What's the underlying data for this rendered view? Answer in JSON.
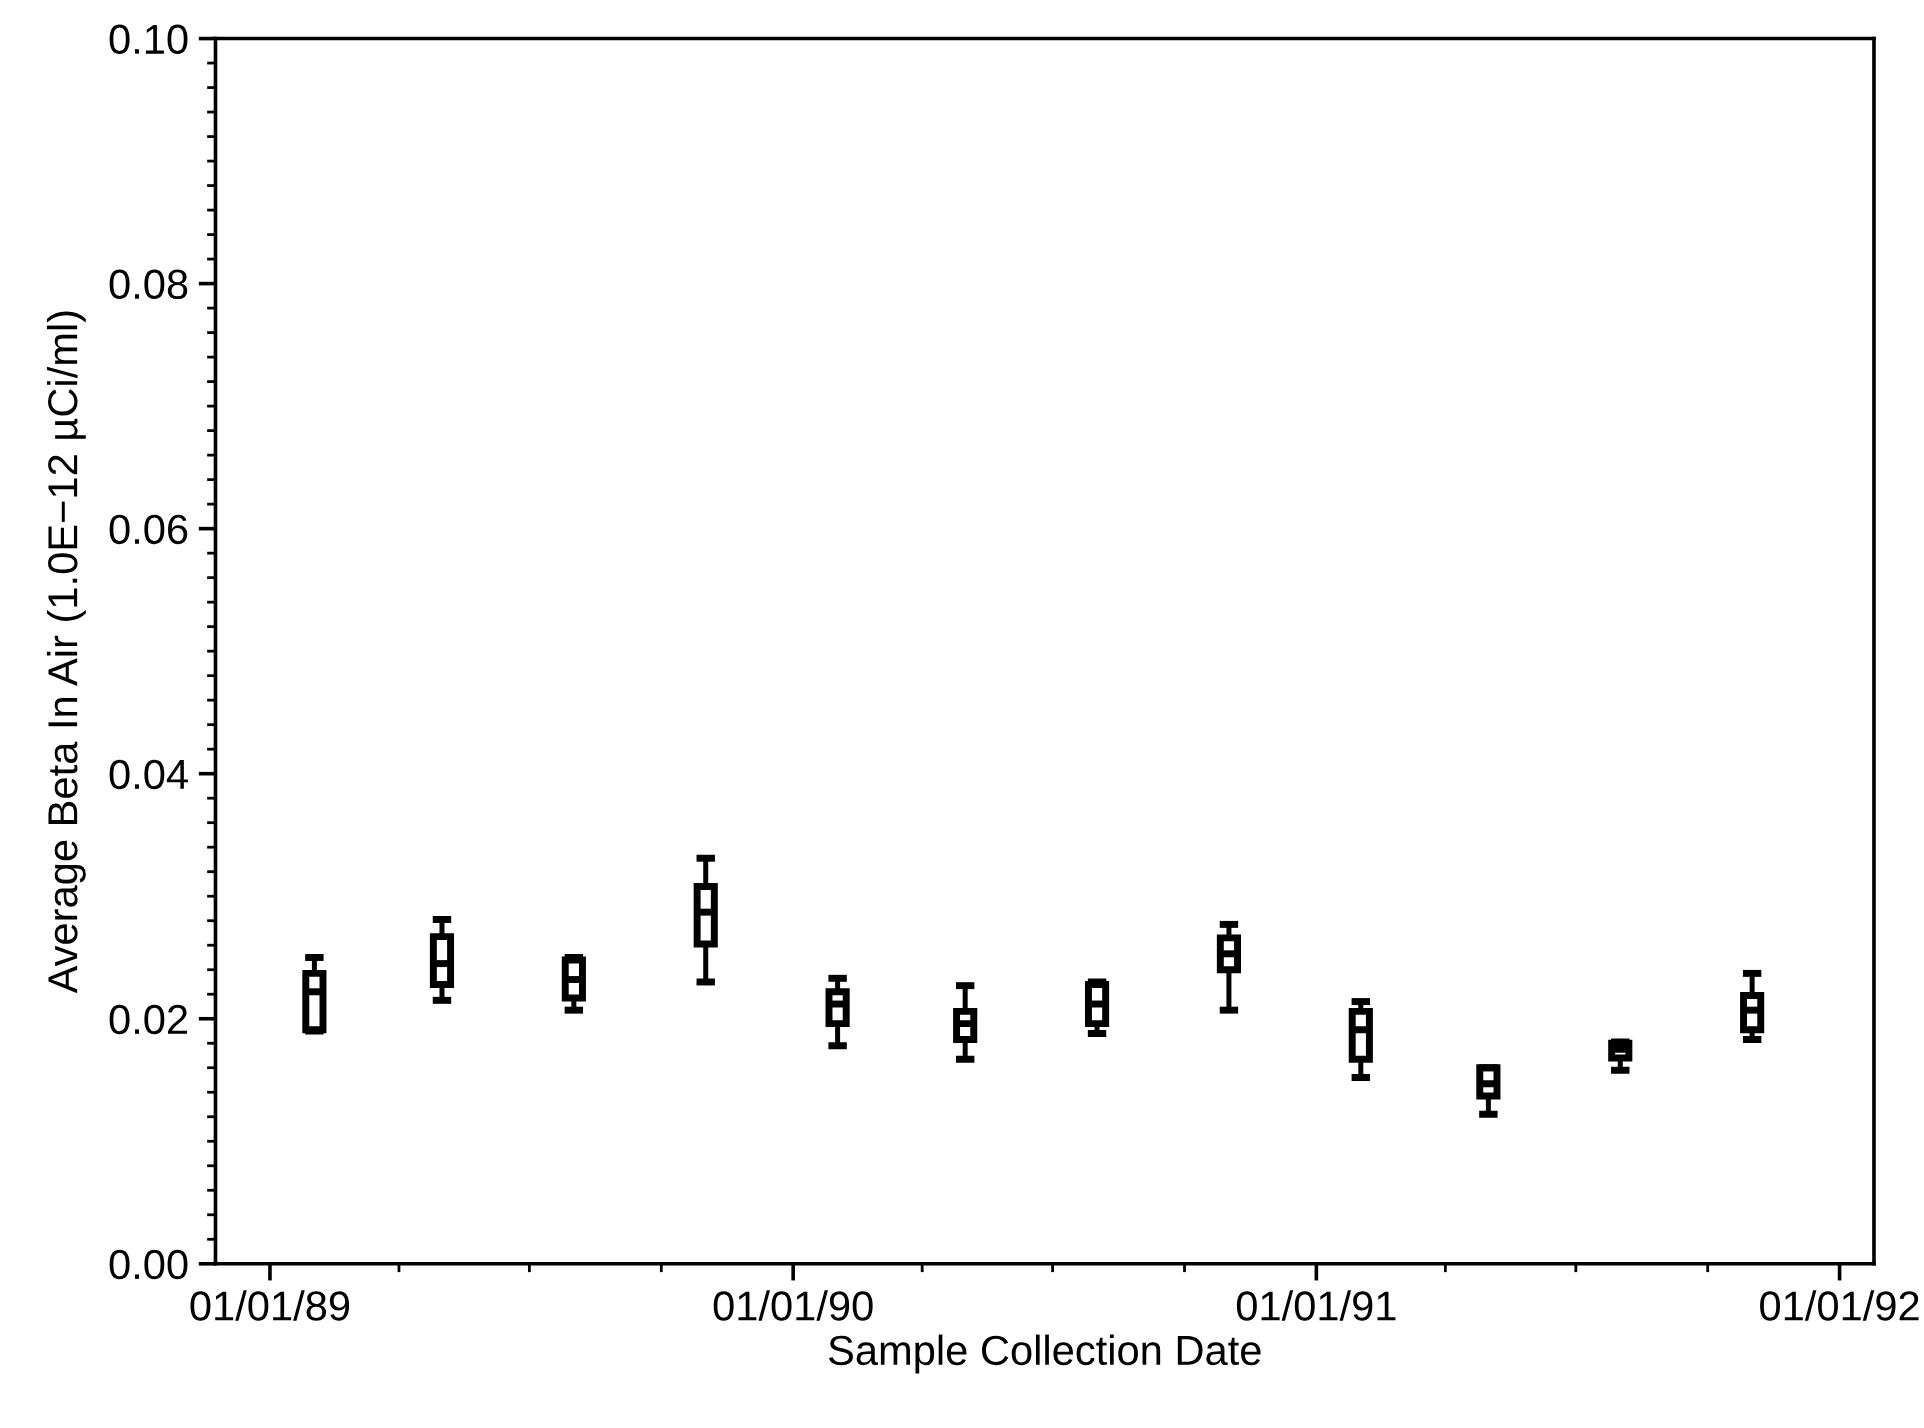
{
  "chart_data": {
    "type": "box",
    "xlabel": "Sample Collection Date",
    "ylabel": "Average Beta In Air (1.0E−12 µCi/ml)",
    "x": [
      "1989-02-01",
      "1989-05-01",
      "1989-08-01",
      "1989-11-01",
      "1990-02-01",
      "1990-05-01",
      "1990-08-01",
      "1990-11-01",
      "1991-02-01",
      "1991-05-01",
      "1991-08-01",
      "1991-11-01"
    ],
    "boxes": [
      {
        "low": 0.019,
        "q1": 0.0191,
        "median": 0.0222,
        "q3": 0.0237,
        "high": 0.025
      },
      {
        "low": 0.0215,
        "q1": 0.0228,
        "median": 0.0245,
        "q3": 0.0267,
        "high": 0.0281
      },
      {
        "low": 0.0207,
        "q1": 0.0217,
        "median": 0.0232,
        "q3": 0.0248,
        "high": 0.025
      },
      {
        "low": 0.023,
        "q1": 0.0261,
        "median": 0.0287,
        "q3": 0.0308,
        "high": 0.0331
      },
      {
        "low": 0.0178,
        "q1": 0.0196,
        "median": 0.0212,
        "q3": 0.0222,
        "high": 0.0233
      },
      {
        "low": 0.0167,
        "q1": 0.0183,
        "median": 0.0196,
        "q3": 0.0206,
        "high": 0.0227
      },
      {
        "low": 0.0188,
        "q1": 0.0196,
        "median": 0.0212,
        "q3": 0.0228,
        "high": 0.023
      },
      {
        "low": 0.0207,
        "q1": 0.024,
        "median": 0.0253,
        "q3": 0.0266,
        "high": 0.0277
      },
      {
        "low": 0.0152,
        "q1": 0.0167,
        "median": 0.0191,
        "q3": 0.0206,
        "high": 0.0214
      },
      {
        "low": 0.0122,
        "q1": 0.0137,
        "median": 0.0147,
        "q3": 0.016,
        "high": 0.016
      },
      {
        "low": 0.0158,
        "q1": 0.0168,
        "median": 0.0175,
        "q3": 0.018,
        "high": 0.0181
      },
      {
        "low": 0.0183,
        "q1": 0.0191,
        "median": 0.0207,
        "q3": 0.0219,
        "high": 0.0237
      }
    ],
    "color": "#000000",
    "xlim": [
      "1988-11-24",
      "1992-01-25"
    ],
    "xticks": [
      {
        "value": "1989-01-01",
        "label": "01/01/89"
      },
      {
        "value": "1990-01-01",
        "label": "01/01/90"
      },
      {
        "value": "1991-01-01",
        "label": "01/01/91"
      },
      {
        "value": "1992-01-01",
        "label": "01/01/92"
      }
    ],
    "ylim": [
      0.0,
      0.1
    ],
    "yticks": [
      {
        "value": 0.0,
        "label": "0.00"
      },
      {
        "value": 0.02,
        "label": "0.02"
      },
      {
        "value": 0.04,
        "label": "0.04"
      },
      {
        "value": 0.06,
        "label": "0.06"
      },
      {
        "value": 0.08,
        "label": "0.08"
      },
      {
        "value": 0.1,
        "label": "0.10"
      }
    ]
  }
}
